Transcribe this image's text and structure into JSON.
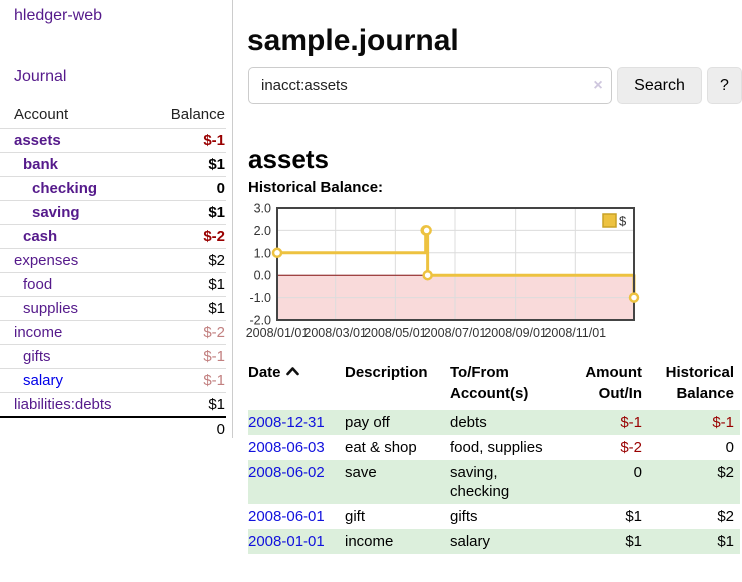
{
  "app": {
    "brand": "hledger-web"
  },
  "sidebar": {
    "journal_label": "Journal",
    "headers": {
      "account": "Account",
      "balance": "Balance"
    },
    "accounts": [
      {
        "name": "assets",
        "depth": 1,
        "bold": true,
        "balance": "$-1",
        "negative": true,
        "muted": false,
        "unvisited": false
      },
      {
        "name": "bank",
        "depth": 2,
        "bold": true,
        "balance": "$1",
        "negative": false,
        "muted": false,
        "unvisited": false
      },
      {
        "name": "checking",
        "depth": 3,
        "bold": true,
        "balance": "0",
        "negative": false,
        "muted": false,
        "unvisited": false
      },
      {
        "name": "saving",
        "depth": 3,
        "bold": true,
        "balance": "$1",
        "negative": false,
        "muted": false,
        "unvisited": false
      },
      {
        "name": "cash",
        "depth": 2,
        "bold": true,
        "balance": "$-2",
        "negative": true,
        "muted": false,
        "unvisited": false
      },
      {
        "name": "expenses",
        "depth": 1,
        "bold": false,
        "balance": "$2",
        "negative": false,
        "muted": false,
        "unvisited": false
      },
      {
        "name": "food",
        "depth": 2,
        "bold": false,
        "balance": "$1",
        "negative": false,
        "muted": false,
        "unvisited": false
      },
      {
        "name": "supplies",
        "depth": 2,
        "bold": false,
        "balance": "$1",
        "negative": false,
        "muted": false,
        "unvisited": false
      },
      {
        "name": "income",
        "depth": 1,
        "bold": false,
        "balance": "$-2",
        "negative": true,
        "muted": true,
        "unvisited": false
      },
      {
        "name": "gifts",
        "depth": 2,
        "bold": false,
        "balance": "$-1",
        "negative": true,
        "muted": true,
        "unvisited": false
      },
      {
        "name": "salary",
        "depth": 2,
        "bold": false,
        "balance": "$-1",
        "negative": true,
        "muted": true,
        "unvisited": true
      },
      {
        "name": "liabilities:debts",
        "depth": 1,
        "bold": false,
        "balance": "$1",
        "negative": false,
        "muted": false,
        "unvisited": false
      }
    ],
    "total": "0"
  },
  "header": {
    "title": "sample.journal"
  },
  "search": {
    "value": "inacct:assets",
    "button_label": "Search",
    "help_label": "?",
    "clear_glyph": "×"
  },
  "account_page": {
    "heading": "assets",
    "chart_label": "Historical Balance:"
  },
  "chart_data": {
    "type": "line",
    "title": "Historical Balance",
    "steps": true,
    "series": [
      {
        "name": "$",
        "color": "#edc240",
        "points": [
          {
            "date": "2008-01-01",
            "day": 0,
            "y": 1
          },
          {
            "date": "2008-06-01",
            "day": 152,
            "y": 2
          },
          {
            "date": "2008-06-02",
            "day": 153,
            "y": 2
          },
          {
            "date": "2008-06-03",
            "day": 154,
            "y": 0
          },
          {
            "date": "2008-12-31",
            "day": 365,
            "y": -1
          }
        ]
      }
    ],
    "x_ticks": [
      {
        "label": "2008/01/01",
        "day": 0
      },
      {
        "label": "2008/03/01",
        "day": 60
      },
      {
        "label": "2008/05/01",
        "day": 121
      },
      {
        "label": "2008/07/01",
        "day": 182
      },
      {
        "label": "2008/09/01",
        "day": 244
      },
      {
        "label": "2008/11/01",
        "day": 305
      }
    ],
    "x_range_days": [
      0,
      365
    ],
    "y_ticks": [
      "3.0",
      "2.0",
      "1.0",
      "0.0",
      "-1.0",
      "-2.0"
    ],
    "ylim": [
      -2,
      3
    ],
    "grid": true,
    "legend": {
      "label": "$",
      "position": "top-right"
    },
    "colors": {
      "line": "#edc240",
      "legend_border": "#c9a227",
      "marker_fill": "#ffffff",
      "negative_region": "#f9dada",
      "zero_line": "#871111",
      "plot_border": "#444444",
      "gridline": "#dcdcdc"
    }
  },
  "register": {
    "columns": {
      "date": "Date",
      "description": "Description",
      "tofrom": [
        "To/From",
        "Account(s)"
      ],
      "amount": [
        "Amount",
        "Out/In"
      ],
      "balance": [
        "Historical",
        "Balance"
      ]
    },
    "rows": [
      {
        "date": "2008-12-31",
        "description": "pay off",
        "accounts": "debts",
        "amount": "$-1",
        "amount_neg": true,
        "balance": "$-1",
        "balance_neg": true,
        "shaded": true
      },
      {
        "date": "2008-06-03",
        "description": "eat & shop",
        "accounts": "food, supplies",
        "amount": "$-2",
        "amount_neg": true,
        "balance": "0",
        "balance_neg": false,
        "shaded": false
      },
      {
        "date": "2008-06-02",
        "description": "save",
        "accounts": "saving, checking",
        "amount": "0",
        "amount_neg": false,
        "balance": "$2",
        "balance_neg": false,
        "shaded": true
      },
      {
        "date": "2008-06-01",
        "description": "gift",
        "accounts": "gifts",
        "amount": "$1",
        "amount_neg": false,
        "balance": "$2",
        "balance_neg": false,
        "shaded": false
      },
      {
        "date": "2008-01-01",
        "description": "income",
        "accounts": "salary",
        "amount": "$1",
        "amount_neg": false,
        "balance": "$1",
        "balance_neg": false,
        "shaded": true
      }
    ]
  },
  "colors": {
    "link_purple": "#551a8b",
    "link_blue": "#0000e8",
    "date_link_blue": "#1111dd",
    "negative": "#990000",
    "muted_negative": "#c28080",
    "row_green": "#dcefdc"
  }
}
